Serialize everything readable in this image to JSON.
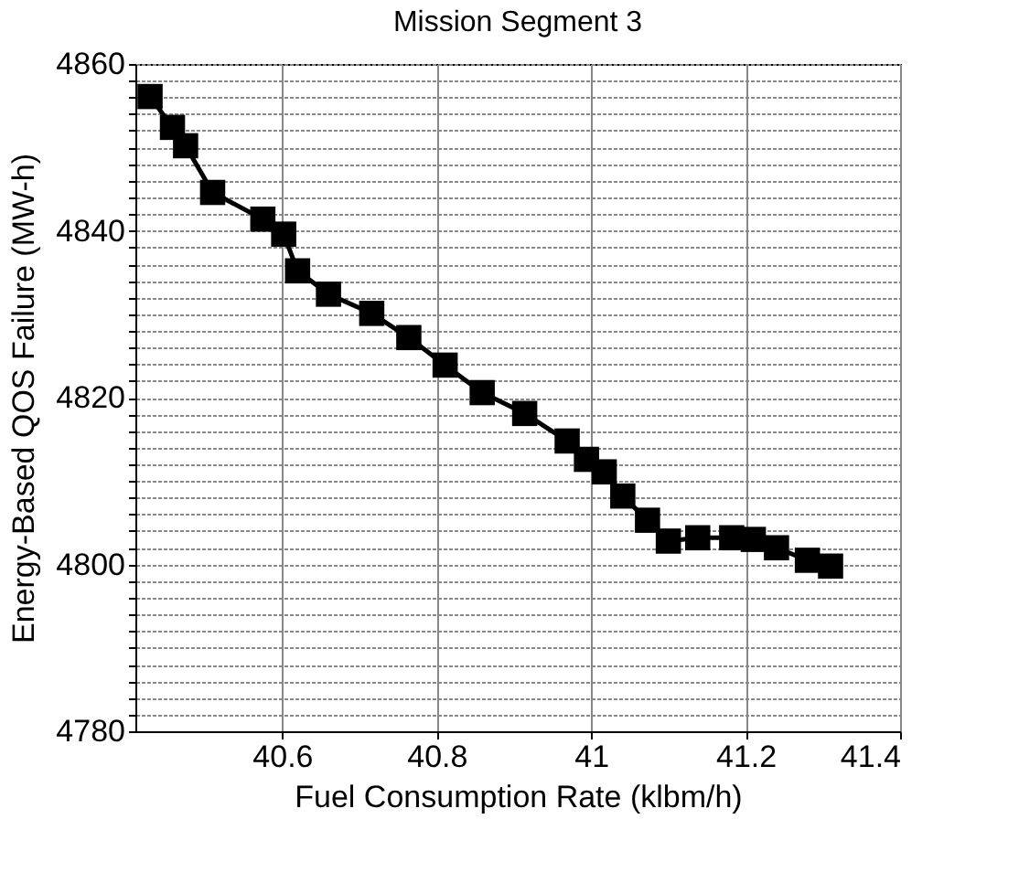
{
  "chart_data": {
    "type": "line",
    "title": "Mission Segment 3",
    "xlabel": "Fuel Consumption Rate (klbm/h)",
    "ylabel": "Energy-Based QOS Failure (MW-h)",
    "x": [
      40.429,
      40.458,
      40.475,
      40.51,
      40.575,
      40.602,
      40.62,
      40.66,
      40.716,
      40.764,
      40.811,
      40.859,
      40.914,
      40.969,
      40.994,
      41.017,
      41.041,
      41.073,
      41.1,
      41.138,
      41.182,
      41.21,
      41.24,
      41.28,
      41.31
    ],
    "series": [
      {
        "color": "#000000",
        "values": [
          4856.1,
          4852.4,
          4850.2,
          4844.6,
          4841.4,
          4839.6,
          4835.2,
          4832.4,
          4830.1,
          4827.2,
          4823.9,
          4820.6,
          4818.1,
          4814.8,
          4812.6,
          4811.1,
          4808.2,
          4805.3,
          4802.8,
          4803.2,
          4803.2,
          4803,
          4802,
          4800.5,
          4799.8
        ]
      }
    ],
    "xlim": [
      40.41,
      41.4
    ],
    "xticks": [
      40.6,
      40.8,
      41,
      41.2,
      41.4
    ],
    "ylim": [
      4780,
      4860
    ],
    "yticks": [
      4780,
      {
        "value": 4782,
        "label": null
      },
      {
        "value": 4784,
        "label": null
      },
      {
        "value": 4786,
        "label": null
      },
      {
        "value": 4788,
        "label": null
      },
      {
        "value": 4790,
        "label": null
      },
      {
        "value": 4792,
        "label": null
      },
      {
        "value": 4794,
        "label": null
      },
      {
        "value": 4796,
        "label": null
      },
      {
        "value": 4798,
        "label": null
      },
      4800,
      {
        "value": 4802,
        "label": null
      },
      {
        "value": 4804,
        "label": null
      },
      {
        "value": 4806,
        "label": null
      },
      {
        "value": 4808,
        "label": null
      },
      {
        "value": 4810,
        "label": null
      },
      {
        "value": 4812,
        "label": null
      },
      {
        "value": 4814,
        "label": null
      },
      {
        "value": 4816,
        "label": null
      },
      {
        "value": 4818,
        "label": null
      },
      4820,
      {
        "value": 4822,
        "label": null
      },
      {
        "value": 4824,
        "label": null
      },
      {
        "value": 4826,
        "label": null
      },
      {
        "value": 4828,
        "label": null
      },
      {
        "value": 4830,
        "label": null
      },
      {
        "value": 4832,
        "label": null
      },
      {
        "value": 4834,
        "label": null
      },
      {
        "value": 4836,
        "label": null
      },
      {
        "value": 4838,
        "label": null
      },
      4840,
      {
        "value": 4842,
        "label": null
      },
      {
        "value": 4844,
        "label": null
      },
      {
        "value": 4846,
        "label": null
      },
      {
        "value": 4848,
        "label": null
      },
      {
        "value": 4850,
        "label": null
      },
      {
        "value": 4852,
        "label": null
      },
      {
        "value": 4854,
        "label": null
      },
      {
        "value": 4856,
        "label": null
      },
      {
        "value": 4858,
        "label": null
      },
      4860
    ],
    "grid": true,
    "marker": "square",
    "line_style": "solid"
  }
}
